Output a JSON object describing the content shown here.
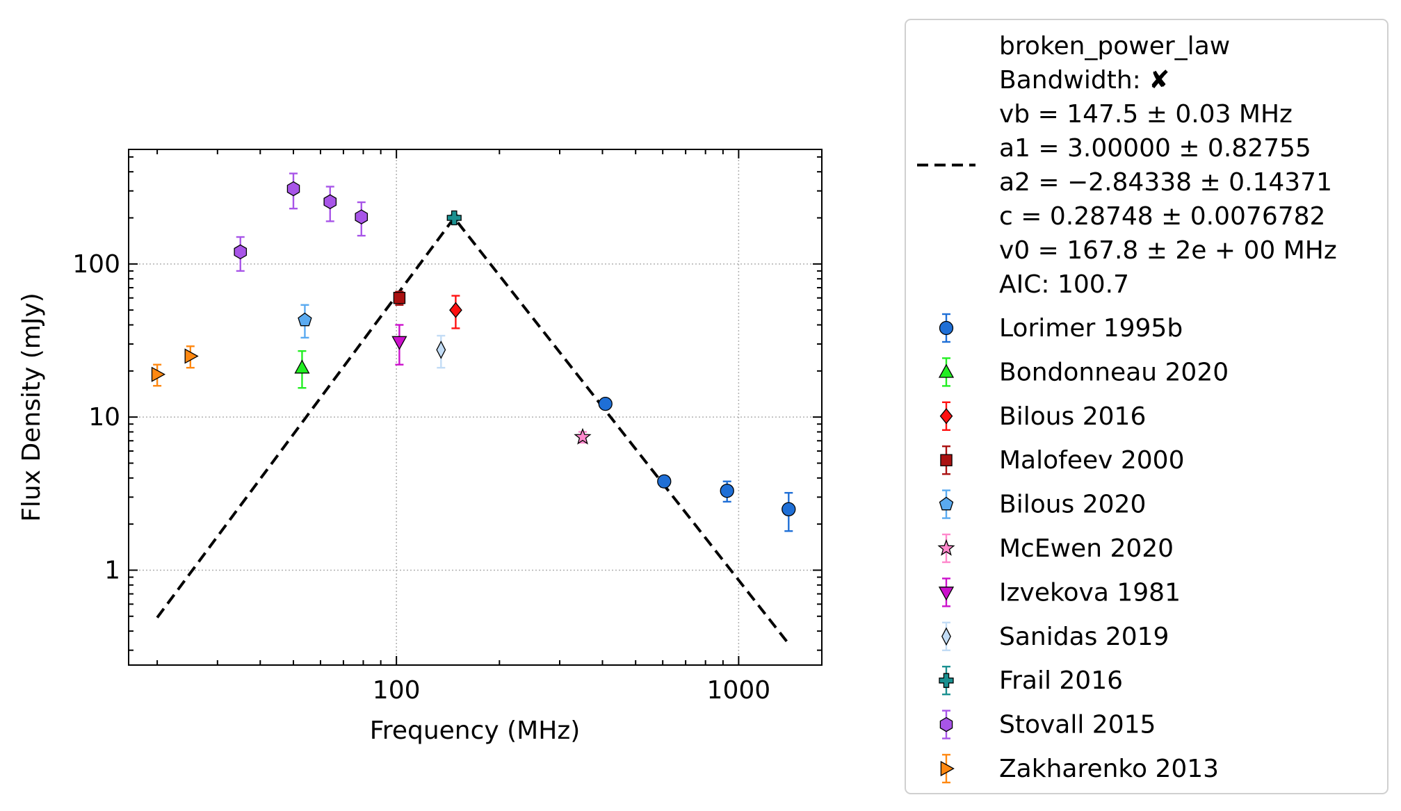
{
  "chart_data": {
    "type": "scatter",
    "xlabel": "Frequency (MHz)",
    "ylabel": "Flux Density (mJy)",
    "xscale": "log",
    "yscale": "log",
    "xlim": [
      16.5,
      1750
    ],
    "ylim": [
      0.24,
      560
    ],
    "x_ticks": [
      {
        "value": 100,
        "label": "100"
      },
      {
        "value": 1000,
        "label": "1000"
      }
    ],
    "y_ticks": [
      {
        "value": 1,
        "label": "1"
      },
      {
        "value": 10,
        "label": "10"
      },
      {
        "value": 100,
        "label": "100"
      }
    ],
    "grid": true,
    "legend_position": "outside-right",
    "fit": {
      "label_lines": [
        "broken_power_law",
        "Bandwidth: ✘",
        "vb = 147.5 ± 0.03 MHz",
        "a1 = 3.00000 ± 0.82755",
        "a2 = −2.84338 ± 0.14371",
        "c = 0.28748 ± 0.0076782",
        "v0 = 167.8 ± 2e + 00 MHz",
        "AIC: 100.7"
      ],
      "style": "dashed",
      "color": "#000000",
      "points": [
        [
          20,
          0.49
        ],
        [
          147.5,
          200
        ],
        [
          1400,
          0.33
        ]
      ]
    },
    "series": [
      {
        "name": "Lorimer 1995b",
        "marker": "circle",
        "color": "#1f6fd6",
        "ecolor": "#1f6fd6",
        "points": [
          [
            408,
            12.2,
            0.6,
            0.6
          ],
          [
            606,
            3.8,
            0.3,
            0.3
          ],
          [
            925,
            3.3,
            0.5,
            0.5
          ],
          [
            1400,
            2.5,
            0.7,
            0.7
          ]
        ]
      },
      {
        "name": "Bondonneau 2020",
        "marker": "triangle-up",
        "color": "#22ee22",
        "ecolor": "#22ee22",
        "points": [
          [
            53,
            21,
            5.5,
            6
          ]
        ]
      },
      {
        "name": "Bilous 2016",
        "marker": "diamond",
        "color": "#ff1111",
        "ecolor": "#ff1111",
        "points": [
          [
            149,
            50,
            12,
            12
          ]
        ]
      },
      {
        "name": "Malofeev 2000",
        "marker": "square",
        "color": "#aa1111",
        "ecolor": "#aa1111",
        "points": [
          [
            102,
            60,
            6,
            6
          ]
        ]
      },
      {
        "name": "Bilous 2020",
        "marker": "pentagon",
        "color": "#5aaaf0",
        "ecolor": "#5aaaf0",
        "points": [
          [
            54,
            43,
            10,
            11
          ]
        ]
      },
      {
        "name": "McEwen 2020",
        "marker": "star",
        "color": "#ff88cc",
        "ecolor": "#ff88cc",
        "points": [
          [
            350,
            7.4,
            0.6,
            0.6
          ]
        ]
      },
      {
        "name": "Izvekova 1981",
        "marker": "triangle-down",
        "color": "#cc11cc",
        "ecolor": "#cc11cc",
        "points": [
          [
            102,
            31,
            9,
            9
          ]
        ]
      },
      {
        "name": "Sanidas 2019",
        "marker": "thin-diamond",
        "color": "#c2dcf5",
        "ecolor": "#c2dcf5",
        "points": [
          [
            135,
            27.5,
            6.5,
            6.5
          ]
        ]
      },
      {
        "name": "Frail 2016",
        "marker": "plus",
        "color": "#1a9090",
        "ecolor": "#1a9090",
        "points": [
          [
            147.5,
            200,
            8,
            8
          ]
        ]
      },
      {
        "name": "Stovall 2015",
        "marker": "hexagon",
        "color": "#a855e8",
        "ecolor": "#a855e8",
        "points": [
          [
            35,
            120,
            30,
            30
          ],
          [
            50,
            310,
            80,
            80
          ],
          [
            64,
            255,
            65,
            65
          ],
          [
            79,
            203,
            50,
            50
          ]
        ]
      },
      {
        "name": "Zakharenko 2013",
        "marker": "triangle-right",
        "color": "#ff8811",
        "ecolor": "#ff8811",
        "points": [
          [
            20,
            19,
            3,
            3
          ],
          [
            25,
            25,
            4,
            4
          ]
        ]
      }
    ]
  }
}
